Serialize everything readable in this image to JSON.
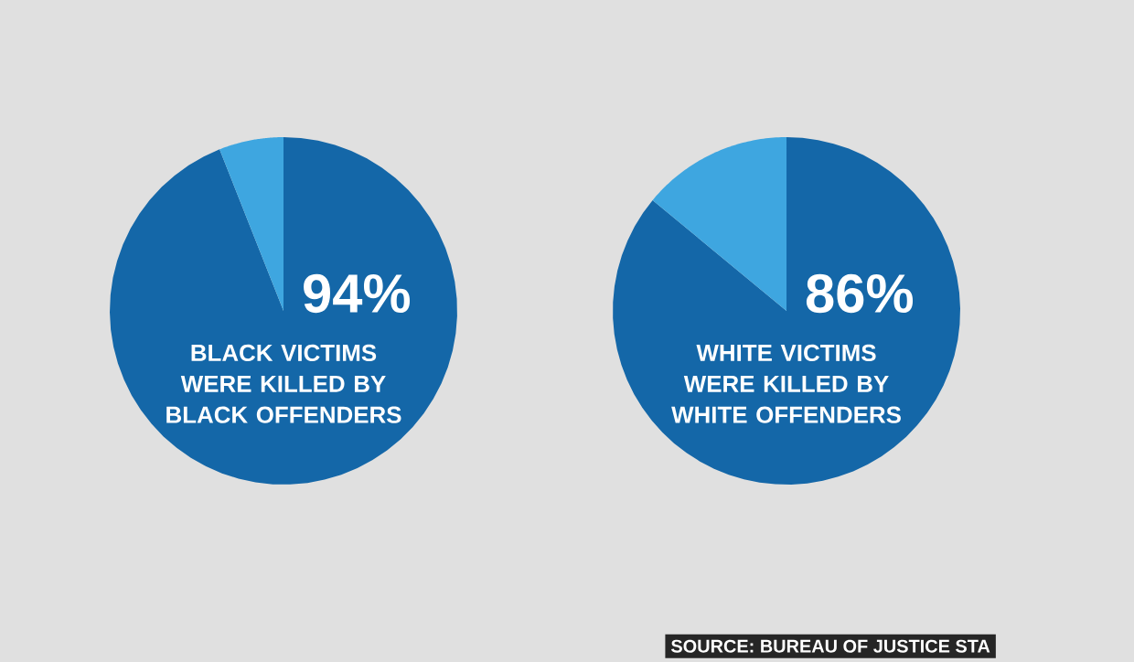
{
  "chart_data": [
    {
      "type": "pie",
      "categories": [
        "BLACK VICTIMS WERE KILLED BY BLACK OFFENDERS",
        null
      ],
      "values": [
        94,
        6
      ],
      "colors": [
        "#1467a8",
        "#3ea6e0"
      ],
      "value_labels": [
        "94%",
        null
      ]
    },
    {
      "type": "pie",
      "categories": [
        "WHITE VICTIMS WERE KILLED BY WHITE OFFENDERS",
        null
      ],
      "values": [
        86,
        14
      ],
      "colors": [
        "#1467a8",
        "#3ea6e0"
      ],
      "value_labels": [
        "86%",
        null
      ],
      "annotations": [
        "SOURCE: BUREAU OF JUSTICE STA"
      ]
    }
  ]
}
